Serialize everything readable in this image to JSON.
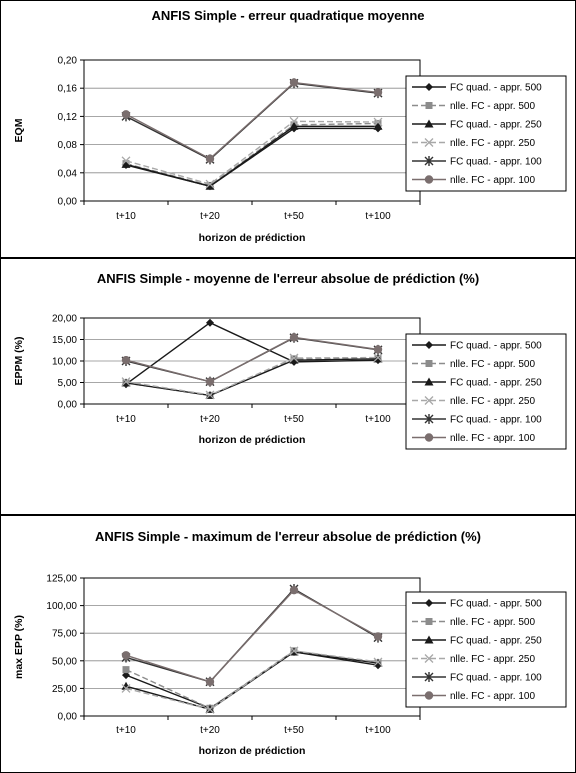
{
  "chart_data": [
    {
      "type": "line",
      "title": "ANFIS Simple - erreur quadratique moyenne",
      "xlabel": "horizon de prédiction",
      "ylabel": "EQM",
      "categories": [
        "t+10",
        "t+20",
        "t+50",
        "t+100"
      ],
      "ylim": [
        0,
        0.2
      ],
      "yticks": [
        "0,00",
        "0,04",
        "0,08",
        "0,12",
        "0,16",
        "0,20"
      ],
      "grid": true,
      "legend_position": "right",
      "series": [
        {
          "name": "FC quad. - appr. 500",
          "values": [
            0.051,
            0.021,
            0.103,
            0.103
          ]
        },
        {
          "name": "nlle. FC - appr. 500",
          "values": [
            0.053,
            0.022,
            0.108,
            0.11
          ]
        },
        {
          "name": "FC quad. - appr. 250",
          "values": [
            0.052,
            0.021,
            0.106,
            0.106
          ]
        },
        {
          "name": "nlle. FC - appr. 250",
          "values": [
            0.057,
            0.024,
            0.113,
            0.112
          ]
        },
        {
          "name": "FC quad. - appr. 100",
          "values": [
            0.12,
            0.059,
            0.167,
            0.153
          ]
        },
        {
          "name": "nlle. FC - appr. 100",
          "values": [
            0.123,
            0.06,
            0.168,
            0.154
          ]
        }
      ]
    },
    {
      "type": "line",
      "title": "ANFIS Simple - moyenne de l'erreur absolue de prédiction (%)",
      "xlabel": "horizon de prédiction",
      "ylabel": "EPPM (%)",
      "categories": [
        "t+10",
        "t+20",
        "t+50",
        "t+100"
      ],
      "ylim": [
        0,
        20
      ],
      "yticks": [
        "0,00",
        "5,00",
        "10,00",
        "15,00",
        "20,00"
      ],
      "grid": true,
      "legend_position": "right",
      "series": [
        {
          "name": "FC quad. - appr. 500",
          "values": [
            4.6,
            18.9,
            9.8,
            10.2
          ]
        },
        {
          "name": "nlle. FC - appr. 500",
          "values": [
            4.9,
            2.0,
            10.5,
            10.6
          ]
        },
        {
          "name": "FC quad. - appr. 250",
          "values": [
            4.9,
            2.0,
            10.2,
            10.5
          ]
        },
        {
          "name": "nlle. FC - appr. 250",
          "values": [
            5.2,
            2.1,
            10.7,
            10.8
          ]
        },
        {
          "name": "FC quad. - appr. 100",
          "values": [
            10.0,
            5.2,
            15.4,
            12.6
          ]
        },
        {
          "name": "nlle. FC - appr. 100",
          "values": [
            10.2,
            5.2,
            15.5,
            12.7
          ]
        }
      ]
    },
    {
      "type": "line",
      "title": "ANFIS Simple - maximum de l'erreur absolue de prédiction (%)",
      "xlabel": "horizon de prédiction",
      "ylabel": "max EPP (%)",
      "categories": [
        "t+10",
        "t+20",
        "t+50",
        "t+100"
      ],
      "ylim": [
        0,
        125
      ],
      "yticks": [
        "0,00",
        "25,00",
        "50,00",
        "75,00",
        "100,00",
        "125,00"
      ],
      "grid": true,
      "legend_position": "right",
      "series": [
        {
          "name": "FC quad. - appr. 500",
          "values": [
            37,
            7,
            58,
            46
          ]
        },
        {
          "name": "nlle. FC - appr. 500",
          "values": [
            42,
            7,
            59,
            48
          ]
        },
        {
          "name": "FC quad. - appr. 250",
          "values": [
            27,
            6,
            58,
            48
          ]
        },
        {
          "name": "nlle. FC - appr. 250",
          "values": [
            25,
            6,
            59,
            49
          ]
        },
        {
          "name": "FC quad. - appr. 100",
          "values": [
            53,
            31,
            115,
            71
          ]
        },
        {
          "name": "nlle. FC - appr. 100",
          "values": [
            55,
            31,
            114,
            72
          ]
        }
      ]
    }
  ],
  "series_styles": [
    {
      "color": "#1a1a1a",
      "marker": "diamond",
      "dash": "none"
    },
    {
      "color": "#8c8c8c",
      "marker": "square",
      "dash": "6,3"
    },
    {
      "color": "#1a1a1a",
      "marker": "triangle",
      "dash": "none"
    },
    {
      "color": "#a8a8a8",
      "marker": "x",
      "dash": "6,3"
    },
    {
      "color": "#333333",
      "marker": "asterisk",
      "dash": "none"
    },
    {
      "color": "#7a6e6e",
      "marker": "circle",
      "dash": "none"
    }
  ]
}
